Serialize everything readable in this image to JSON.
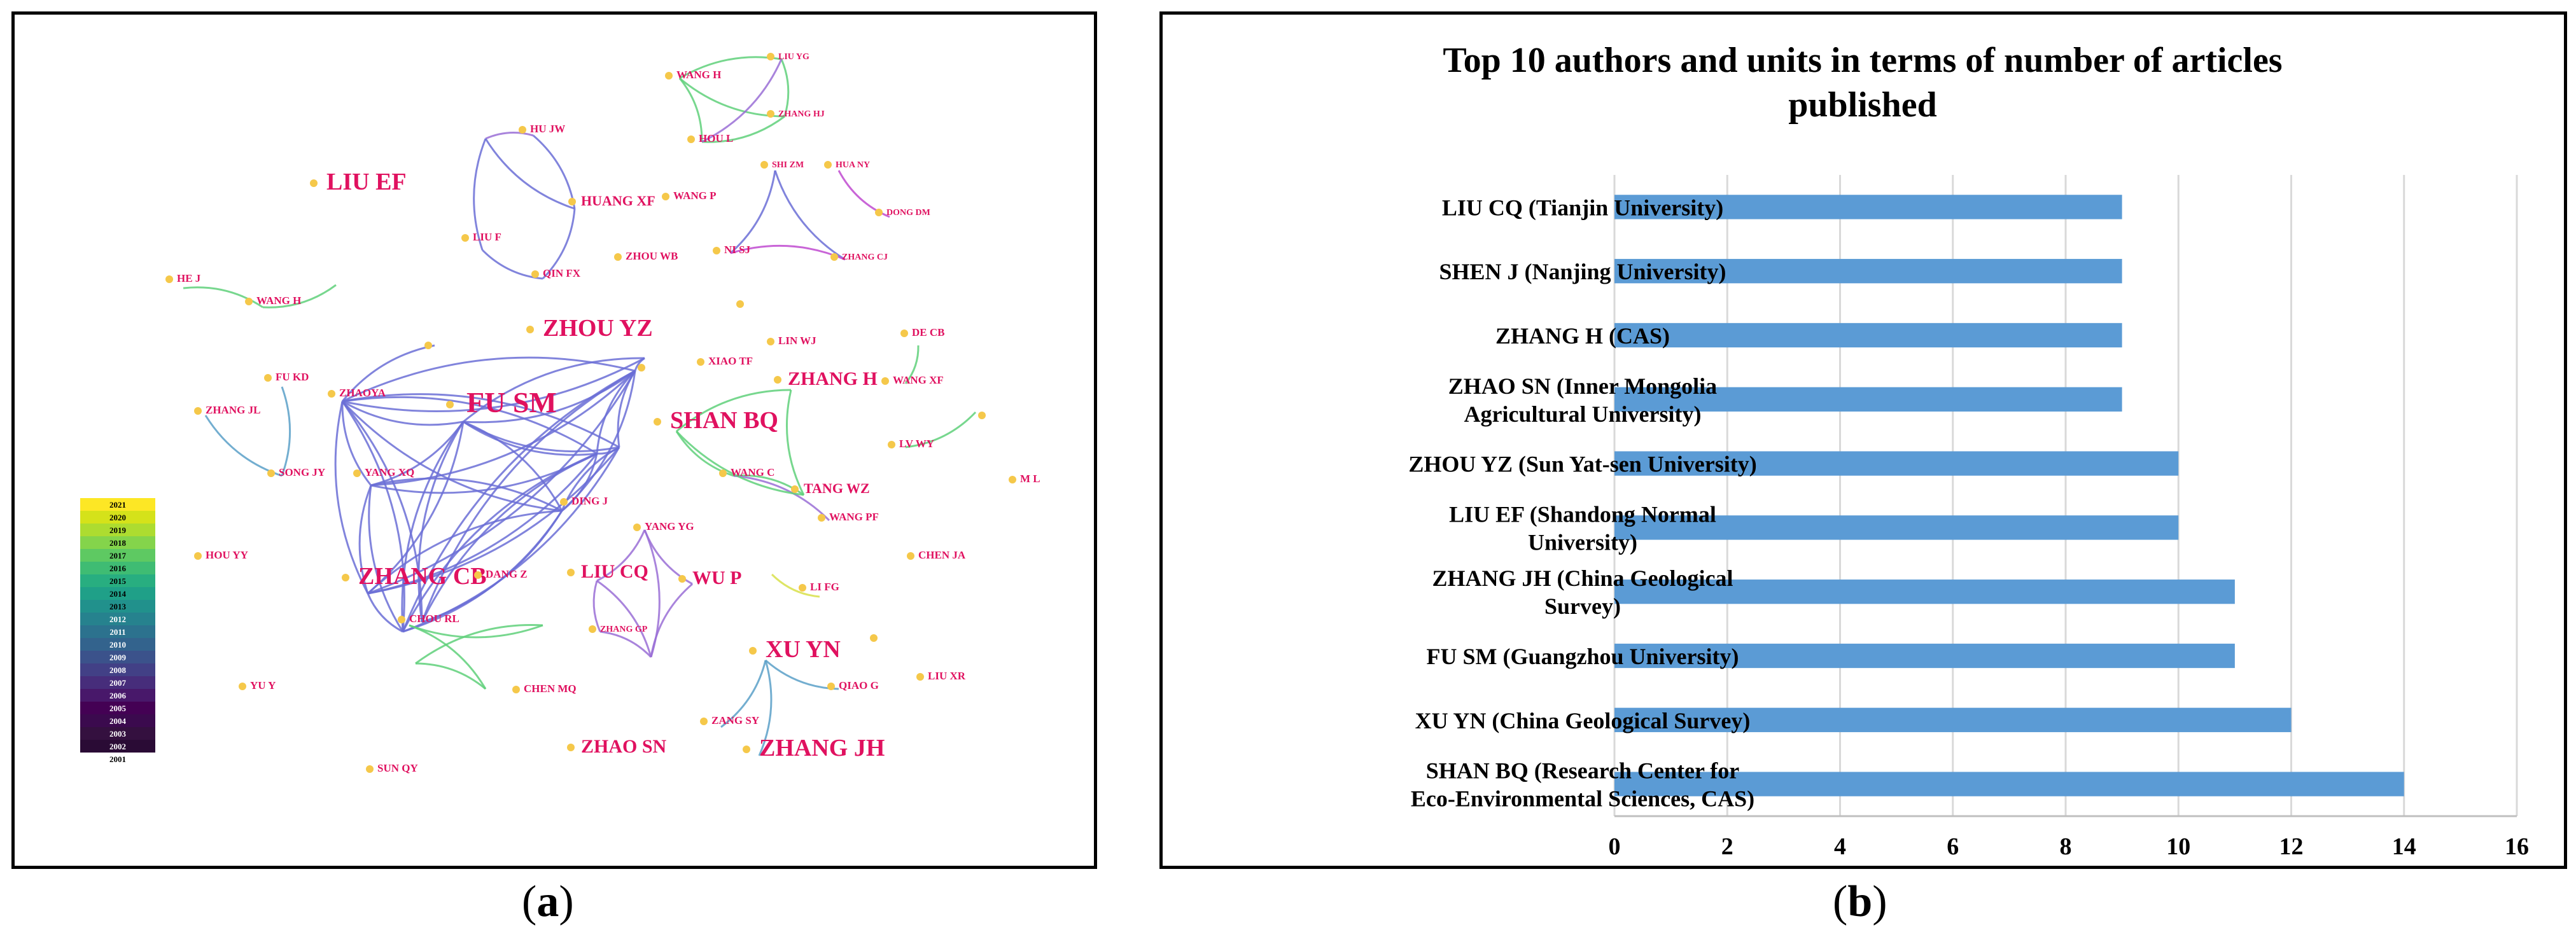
{
  "captions": {
    "a": "a",
    "b": "b"
  },
  "network": {
    "colors": {
      "node": "#f5c84a",
      "label": "#e0115f"
    },
    "legend_years": [
      "2021",
      "2020",
      "2019",
      "2018",
      "2017",
      "2016",
      "2015",
      "2014",
      "2013",
      "2012",
      "2011",
      "2010",
      "2009",
      "2008",
      "2007",
      "2006",
      "2005",
      "2004",
      "2003",
      "2002",
      "2001"
    ],
    "labels": [
      {
        "text": "LIU EF",
        "size": "xl"
      },
      {
        "text": "HU JW",
        "size": "s"
      },
      {
        "text": "HUANG XF",
        "size": "m"
      },
      {
        "text": "LIU F",
        "size": "s"
      },
      {
        "text": "QIN FX",
        "size": "s"
      },
      {
        "text": "WANG H",
        "size": "s"
      },
      {
        "text": "LIU YG",
        "size": "xs"
      },
      {
        "text": "ZHANG HJ",
        "size": "xs"
      },
      {
        "text": "HOU L",
        "size": "s"
      },
      {
        "text": "SHI ZM",
        "size": "xs"
      },
      {
        "text": "HUA NY",
        "size": "xs"
      },
      {
        "text": "DONG DM",
        "size": "xs"
      },
      {
        "text": "WANG P",
        "size": "s"
      },
      {
        "text": "NI SJ",
        "size": "s"
      },
      {
        "text": "ZHANG CJ",
        "size": "xs"
      },
      {
        "text": "ZHOU WB",
        "size": "s"
      },
      {
        "text": "HE J",
        "size": "s"
      },
      {
        "text": "WANG H",
        "size": "s"
      },
      {
        "text": "ZHOU YZ",
        "size": "xl"
      },
      {
        "text": "LIN WJ",
        "size": "s"
      },
      {
        "text": "DE CB",
        "size": "s"
      },
      {
        "text": "XIAO TF",
        "size": "s"
      },
      {
        "text": "ZHANG H",
        "size": "l"
      },
      {
        "text": "WANG XF",
        "size": "s"
      },
      {
        "text": "FU KD",
        "size": "s"
      },
      {
        "text": "ZHAOYA",
        "size": "s"
      },
      {
        "text": "FU SM",
        "size": "xxl"
      },
      {
        "text": "ZHANG JL",
        "size": "s"
      },
      {
        "text": "SHAN BQ",
        "size": "xl"
      },
      {
        "text": "LV WY",
        "size": "s"
      },
      {
        "text": "SONG JY",
        "size": "s"
      },
      {
        "text": "YANG XQ",
        "size": "s"
      },
      {
        "text": "WANG C",
        "size": "s"
      },
      {
        "text": "TANG WZ",
        "size": "m"
      },
      {
        "text": "M L",
        "size": "s"
      },
      {
        "text": "DING J",
        "size": "s"
      },
      {
        "text": "WANG PF",
        "size": "s"
      },
      {
        "text": "YANG YG",
        "size": "s"
      },
      {
        "text": "HOU YY",
        "size": "s"
      },
      {
        "text": "CHEN JA",
        "size": "s"
      },
      {
        "text": "LIU CQ",
        "size": "l"
      },
      {
        "text": "WU P",
        "size": "l"
      },
      {
        "text": "ZHANG CB",
        "size": "xl"
      },
      {
        "text": "DANG Z",
        "size": "s"
      },
      {
        "text": "LI FG",
        "size": "s"
      },
      {
        "text": "CHOU RL",
        "size": "s"
      },
      {
        "text": "ZHANG GP",
        "size": "xs"
      },
      {
        "text": "XU YN",
        "size": "xl"
      },
      {
        "text": "QIAO G",
        "size": "s"
      },
      {
        "text": "LIU XR",
        "size": "s"
      },
      {
        "text": "YU Y",
        "size": "s"
      },
      {
        "text": "CHEN MQ",
        "size": "s"
      },
      {
        "text": "ZANG SY",
        "size": "s"
      },
      {
        "text": "ZHAO SN",
        "size": "l"
      },
      {
        "text": "ZHANG JH",
        "size": "xl"
      },
      {
        "text": "SUN QY",
        "size": "s"
      }
    ]
  },
  "chart_data": {
    "type": "bar",
    "orientation": "horizontal",
    "title": "Top 10 authors and units in terms of number of articles published",
    "title_lines": [
      "Top 10 authors and units in terms of number of articles",
      "published"
    ],
    "categories": [
      "LIU CQ (Tianjin University)",
      "SHEN J (Nanjing University)",
      "ZHANG H (CAS)",
      "ZHAO SN (Inner Mongolia Agricultural University)",
      "ZHOU YZ (Sun Yat-sen University)",
      "LIU EF (Shandong Normal University)",
      "ZHANG JH (China Geological Survey)",
      "FU SM (Guangzhou University)",
      "XU YN (China Geological Survey)",
      "SHAN BQ (Research Center for Eco-Environmental Sciences, CAS)"
    ],
    "category_lines": [
      [
        "LIU CQ (Tianjin University)"
      ],
      [
        "SHEN J (Nanjing University)"
      ],
      [
        "ZHANG H (CAS)"
      ],
      [
        "ZHAO SN (Inner Mongolia",
        "Agricultural University)"
      ],
      [
        "ZHOU YZ (Sun Yat-sen University)"
      ],
      [
        "LIU EF (Shandong Normal",
        "University)"
      ],
      [
        "ZHANG JH (China Geological",
        "Survey)"
      ],
      [
        "FU SM (Guangzhou University)"
      ],
      [
        "XU YN (China Geological Survey)"
      ],
      [
        "SHAN BQ (Research Center for",
        "Eco-Environmental Sciences, CAS)"
      ]
    ],
    "values": [
      9,
      9,
      9,
      9,
      10,
      10,
      11,
      11,
      12,
      14
    ],
    "xlim": [
      0,
      16
    ],
    "xticks": [
      0,
      2,
      4,
      6,
      8,
      10,
      12,
      14,
      16
    ],
    "grid": true,
    "bar_color": "#5b9bd5",
    "grid_color": "#d9d9d9"
  }
}
